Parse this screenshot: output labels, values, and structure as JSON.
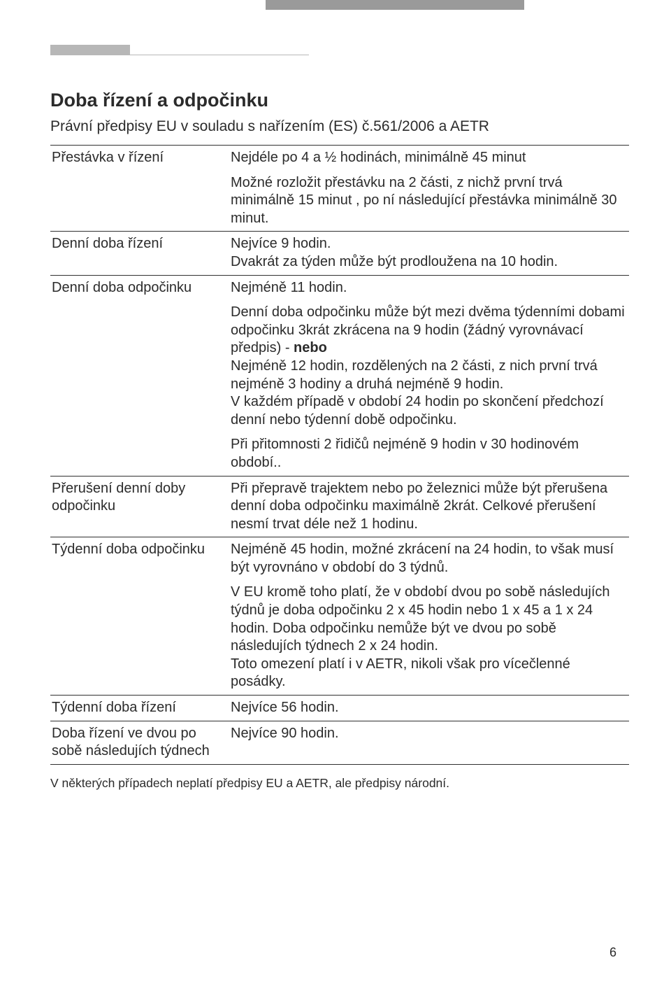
{
  "title": "Doba řízení a odpočinku",
  "subtitle": "Právní předpisy EU v souladu s nařízením (ES) č.561/2006 a AETR",
  "rows": [
    {
      "label": "Přestávka v řízení",
      "paras": [
        "Nejdéle po 4 a ½ hodinách, minimálně 45 minut",
        "Možné rozložit přestávku na 2 části, z nichž první trvá minimálně 15 minut , po ní následující přestávka minimálně 30 minut."
      ]
    },
    {
      "label": "Denní doba řízení",
      "paras": [
        "Nejvíce 9 hodin.\nDvakrát za týden může být prodloužena na 10 hodin."
      ]
    },
    {
      "label": "Denní doba odpočinku",
      "paras": [
        "Nejméně 11 hodin.",
        "Denní doba odpočinku může být  mezi dvěma týdenními dobami odpočinku 3krát zkrácena na 9 hodin (žádný vyrovnávací předpis) - nebo\nNejméně 12 hodin, rozdělených na 2 části, z nich první trvá nejméně 3 hodiny a druhá nejméně 9 hodin.\nV každém případě v období 24 hodin po skončení předchozí denní nebo týdenní době odpočinku.",
        "Při přitomnosti 2 řidičů nejméně 9 hodin v 30 hodinovém období.."
      ]
    },
    {
      "label": "Přerušení denní doby odpočinku",
      "paras": [
        "Při přepravě trajektem nebo po železnici může být přerušena denní doba odpočinku maximálně 2krát. Celkové přerušení nesmí trvat déle než 1 hodinu."
      ]
    },
    {
      "label": "Týdenní doba odpočinku",
      "paras": [
        "Nejméně 45 hodin, možné zkrácení na 24 hodin, to však musí být vyrovnáno v období do 3 týdnů.",
        "V EU kromě toho platí, že v období dvou po sobě následujích týdnů je doba odpočinku  2 x 45 hodin nebo 1 x 45 a 1 x 24 hodin. Doba odpočinku nemůže být ve dvou po sobě následujích týdnech 2 x 24 hodin.\nToto omezení platí i v AETR, nikoli však pro vícečlenné posádky."
      ]
    },
    {
      "label": "Týdenní doba řízení",
      "paras": [
        "Nejvíce 56 hodin."
      ]
    },
    {
      "label": "Doba řízení ve dvou po sobě následujích týdnech",
      "paras": [
        "Nejvíce 90 hodin."
      ]
    }
  ],
  "boldWord": "nebo",
  "note": "V některých případech neplatí předpisy EU a AETR, ale předpisy národní.",
  "pageNumber": "6"
}
